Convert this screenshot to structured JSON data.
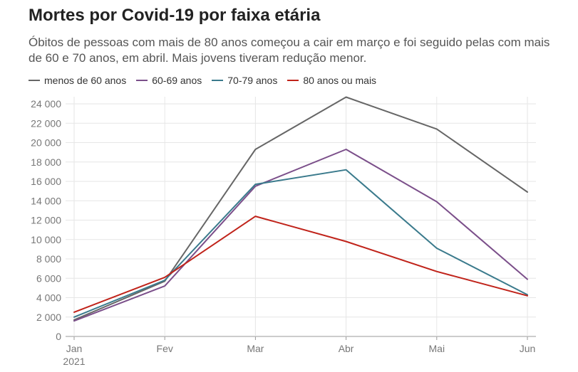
{
  "header": {
    "title": "Mortes por Covid-19 por faixa etária",
    "subtitle": "Óbitos de pessoas com mais de 80 anos começou a cair em março e foi seguido pelas com mais de 60 e 70 anos, em abril. Mais jovens tiveram redução menor."
  },
  "chart_data": {
    "type": "line",
    "title": "Mortes por Covid-19 por faixa etária",
    "categories": [
      "Jan",
      "Fev",
      "Mar",
      "Abr",
      "Mai",
      "Jun"
    ],
    "year_label": "2021",
    "ylim": [
      0,
      24000
    ],
    "yticks": [
      0,
      2000,
      4000,
      6000,
      8000,
      10000,
      12000,
      14000,
      16000,
      18000,
      20000,
      22000,
      24000
    ],
    "ytick_labels": [
      "0",
      "2 000",
      "4 000",
      "6 000",
      "8 000",
      "10 000",
      "12 000",
      "14 000",
      "16 000",
      "18 000",
      "20 000",
      "22 000",
      "24 000"
    ],
    "grid": true,
    "legend_position": "top-left",
    "series": [
      {
        "name": "menos de 60 anos",
        "color": "#666666",
        "values": [
          1700,
          5700,
          19300,
          24700,
          21400,
          14900
        ]
      },
      {
        "name": "60-69 anos",
        "color": "#7b4f8a",
        "values": [
          1600,
          5200,
          15500,
          19300,
          13900,
          5900
        ]
      },
      {
        "name": "70-79 anos",
        "color": "#3a7a8c",
        "values": [
          2000,
          5800,
          15700,
          17200,
          9100,
          4300
        ]
      },
      {
        "name": "80 anos ou mais",
        "color": "#c0231a",
        "values": [
          2500,
          6100,
          12400,
          9800,
          6700,
          4200
        ]
      }
    ]
  }
}
